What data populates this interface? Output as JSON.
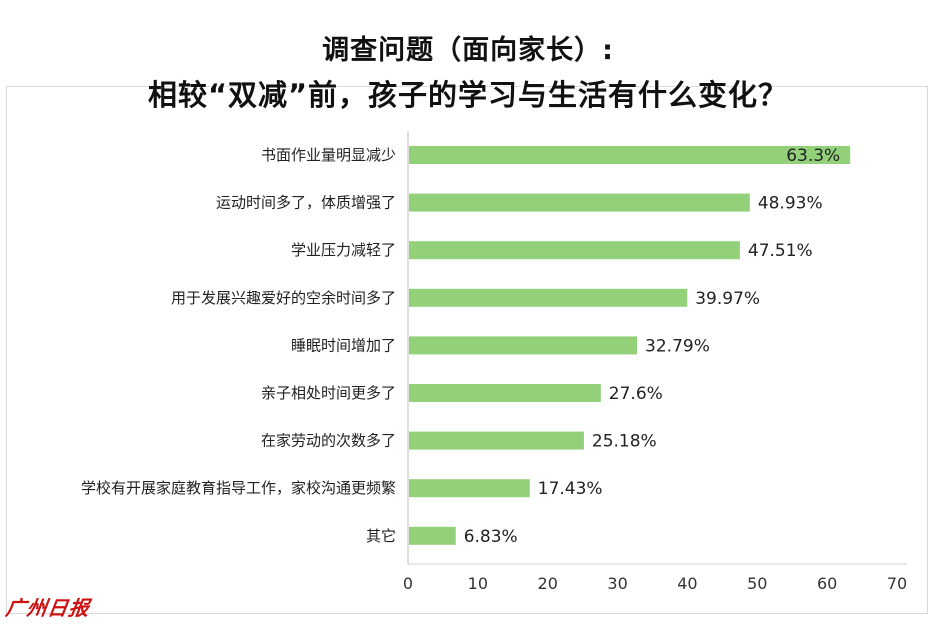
{
  "title_line1": "调查问题（面向家长）:",
  "title_line2": "相较“双减”前，孩子的学习与生活有什么变化？",
  "logo_text": "广州日报",
  "chart_data": {
    "type": "bar",
    "orientation": "horizontal",
    "categories": [
      "书面作业量明显减少",
      "运动时间多了，体质增强了",
      "学业压力减轻了",
      "用于发展兴趣爱好的空余时间多了",
      "睡眠时间增加了",
      "亲子相处时间更多了",
      "在家劳动的次数多了",
      "学校有开展家庭教育指导工作，家校沟通更频繁",
      "其它"
    ],
    "values": [
      63.3,
      48.93,
      47.51,
      39.97,
      32.79,
      27.6,
      25.18,
      17.43,
      6.83
    ],
    "value_labels": [
      "63.3%",
      "48.93%",
      "47.51%",
      "39.97%",
      "32.79%",
      "27.6%",
      "25.18%",
      "17.43%",
      "6.83%"
    ],
    "xlim": [
      0,
      70
    ],
    "x_ticks": [
      0,
      10,
      20,
      30,
      40,
      50,
      60,
      70
    ],
    "grid": false,
    "legend": "none",
    "bar_color": "#92d07a"
  }
}
